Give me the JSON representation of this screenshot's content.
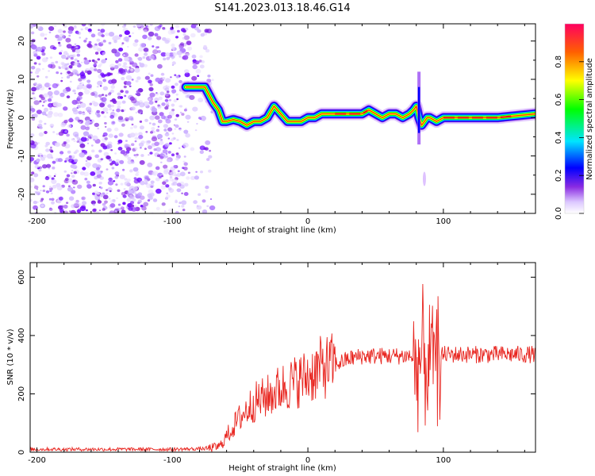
{
  "title": "S141.2023.013.18.46.G14",
  "chart_data": [
    {
      "type": "heatmap",
      "xlabel": "Height of straight line (km)",
      "ylabel": "Frequency (Hz)",
      "xlim": [
        -205,
        168
      ],
      "ylim": [
        -25,
        24.5
      ],
      "xticks": [
        -200,
        -100,
        0,
        100
      ],
      "yticks": [
        -20,
        -10,
        0,
        10,
        20
      ],
      "colorbar": {
        "label": "Normalized spectral amplitude",
        "range": [
          0,
          1
        ],
        "ticks": [
          0.0,
          0.2,
          0.4,
          0.6,
          0.8
        ]
      },
      "noise_region_x": [
        -205,
        -70
      ],
      "ridge": {
        "x": [
          -90,
          -82,
          -76,
          -73,
          -70,
          -66,
          -63,
          -60,
          -55,
          -50,
          -45,
          -40,
          -35,
          -30,
          -25,
          -20,
          -15,
          -10,
          -5,
          0,
          5,
          10,
          15,
          20,
          30,
          40,
          45,
          50,
          55,
          60,
          65,
          70,
          75,
          78,
          80,
          82,
          84,
          86,
          88,
          90,
          95,
          100,
          120,
          140,
          168
        ],
        "y": [
          8,
          8,
          8,
          6,
          4,
          2,
          -1,
          -1,
          -0.5,
          -1,
          -2,
          -1,
          -1,
          0,
          3,
          1,
          -1,
          -1,
          -1,
          0,
          0,
          1,
          1,
          1,
          1,
          1,
          2,
          1,
          0,
          1,
          1,
          0,
          1,
          2,
          3,
          0,
          -2,
          -1,
          0,
          0,
          -1,
          0,
          0,
          0,
          1
        ]
      }
    },
    {
      "type": "line",
      "xlabel": "Height of straight line (km)",
      "ylabel": "SNR (10 * v/v)",
      "xlim": [
        -205,
        168
      ],
      "ylim": [
        0,
        650
      ],
      "xticks": [
        -200,
        -100,
        0,
        100
      ],
      "yticks": [
        0,
        200,
        400,
        600
      ],
      "series": [
        {
          "name": "SNR",
          "color": "#e8251f",
          "x": [
            -205,
            -150,
            -100,
            -75,
            -65,
            -60,
            -50,
            -40,
            -30,
            -20,
            -10,
            0,
            10,
            20,
            30,
            40,
            60,
            75,
            80,
            85,
            90,
            95,
            100,
            120,
            140,
            168
          ],
          "y": [
            10,
            10,
            10,
            12,
            20,
            55,
            120,
            170,
            190,
            220,
            240,
            260,
            290,
            300,
            320,
            330,
            330,
            330,
            310,
            320,
            320,
            320,
            335,
            335,
            335,
            335
          ]
        }
      ]
    }
  ]
}
